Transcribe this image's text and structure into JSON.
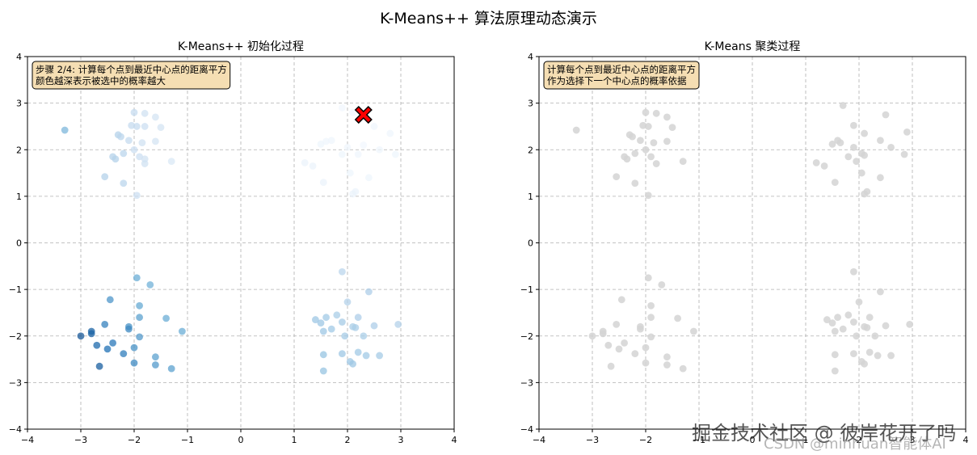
{
  "suptitle": "K-Means++ 算法原理动态演示",
  "watermark": {
    "line1": "掘金技术社区 @ 彼岸花开了吗",
    "line2": "CSDN @minhuan智能体AI"
  },
  "colors": {
    "grid": "#b0b0b0",
    "centroid_fill": "#ff0000",
    "annotation_bg": "#f5deb3",
    "grey_points": "#d3d3d3"
  },
  "chart_data": [
    {
      "type": "scatter",
      "title": "K-Means++ 初始化过程",
      "xlim": [
        -4,
        4
      ],
      "ylim": [
        -4,
        4
      ],
      "xticks": [
        -4,
        -3,
        -2,
        -1,
        0,
        1,
        2,
        3,
        4
      ],
      "yticks": [
        -4,
        -3,
        -2,
        -1,
        0,
        1,
        2,
        3,
        4
      ],
      "grid": true,
      "colormap": "Blues",
      "annotation": [
        "步骤 2/4: 计算每个点到最近中心点的距离平方",
        "颜色越深表示被选中的概率越大"
      ],
      "annotation_position": "top-left",
      "centroid": {
        "x": 2.3,
        "y": 2.75,
        "marker": "X"
      },
      "points": [
        {
          "x": -3.3,
          "y": 2.42,
          "w": 0.45
        },
        {
          "x": -2.0,
          "y": 2.8,
          "w": 0.25
        },
        {
          "x": -1.8,
          "y": 2.78,
          "w": 0.2
        },
        {
          "x": -1.6,
          "y": 2.7,
          "w": 0.18
        },
        {
          "x": -2.05,
          "y": 2.52,
          "w": 0.25
        },
        {
          "x": -1.95,
          "y": 2.5,
          "w": 0.25
        },
        {
          "x": -1.8,
          "y": 2.5,
          "w": 0.22
        },
        {
          "x": -1.5,
          "y": 2.48,
          "w": 0.18
        },
        {
          "x": -2.3,
          "y": 2.32,
          "w": 0.3
        },
        {
          "x": -2.25,
          "y": 2.28,
          "w": 0.28
        },
        {
          "x": -2.1,
          "y": 2.2,
          "w": 0.25
        },
        {
          "x": -1.6,
          "y": 2.18,
          "w": 0.18
        },
        {
          "x": -1.85,
          "y": 2.15,
          "w": 0.2
        },
        {
          "x": -2.0,
          "y": 2.0,
          "w": 0.22
        },
        {
          "x": -2.2,
          "y": 1.92,
          "w": 0.28
        },
        {
          "x": -2.4,
          "y": 1.85,
          "w": 0.3
        },
        {
          "x": -2.35,
          "y": 1.8,
          "w": 0.3
        },
        {
          "x": -1.9,
          "y": 1.85,
          "w": 0.22
        },
        {
          "x": -1.8,
          "y": 1.8,
          "w": 0.2
        },
        {
          "x": -1.8,
          "y": 1.7,
          "w": 0.2
        },
        {
          "x": -1.3,
          "y": 1.75,
          "w": 0.15
        },
        {
          "x": -2.55,
          "y": 1.42,
          "w": 0.3
        },
        {
          "x": -2.2,
          "y": 1.28,
          "w": 0.28
        },
        {
          "x": -1.95,
          "y": 1.02,
          "w": 0.22
        },
        {
          "x": 1.9,
          "y": 2.9,
          "w": 0.03
        },
        {
          "x": 2.1,
          "y": 2.8,
          "w": 0.03
        },
        {
          "x": 2.5,
          "y": 2.5,
          "w": 0.04
        },
        {
          "x": 2.8,
          "y": 2.35,
          "w": 0.04
        },
        {
          "x": 1.7,
          "y": 2.2,
          "w": 0.04
        },
        {
          "x": 1.6,
          "y": 2.18,
          "w": 0.04
        },
        {
          "x": 1.5,
          "y": 2.12,
          "w": 0.05
        },
        {
          "x": 2.0,
          "y": 2.05,
          "w": 0.04
        },
        {
          "x": 2.3,
          "y": 2.1,
          "w": 0.03
        },
        {
          "x": 1.9,
          "y": 1.9,
          "w": 0.05
        },
        {
          "x": 2.2,
          "y": 1.9,
          "w": 0.04
        },
        {
          "x": 2.6,
          "y": 2.0,
          "w": 0.04
        },
        {
          "x": 2.9,
          "y": 1.9,
          "w": 0.05
        },
        {
          "x": 1.2,
          "y": 1.72,
          "w": 0.06
        },
        {
          "x": 1.35,
          "y": 1.65,
          "w": 0.06
        },
        {
          "x": 2.05,
          "y": 1.5,
          "w": 0.05
        },
        {
          "x": 2.4,
          "y": 1.4,
          "w": 0.05
        },
        {
          "x": 1.55,
          "y": 1.3,
          "w": 0.06
        },
        {
          "x": 2.15,
          "y": 1.1,
          "w": 0.06
        },
        {
          "x": 2.1,
          "y": 1.05,
          "w": 0.06
        },
        {
          "x": -1.95,
          "y": -0.75,
          "w": 0.5
        },
        {
          "x": -1.7,
          "y": -0.9,
          "w": 0.48
        },
        {
          "x": -2.45,
          "y": -1.22,
          "w": 0.6
        },
        {
          "x": -1.9,
          "y": -1.35,
          "w": 0.52
        },
        {
          "x": -1.9,
          "y": -1.6,
          "w": 0.55
        },
        {
          "x": -1.4,
          "y": -1.62,
          "w": 0.5
        },
        {
          "x": -2.55,
          "y": -1.75,
          "w": 0.68
        },
        {
          "x": -2.1,
          "y": -1.8,
          "w": 0.62
        },
        {
          "x": -2.1,
          "y": -1.85,
          "w": 0.65
        },
        {
          "x": -1.1,
          "y": -1.9,
          "w": 0.5
        },
        {
          "x": -2.8,
          "y": -1.9,
          "w": 0.8
        },
        {
          "x": -2.8,
          "y": -1.95,
          "w": 0.8
        },
        {
          "x": -3.0,
          "y": -2.0,
          "w": 0.85
        },
        {
          "x": -1.9,
          "y": -2.02,
          "w": 0.58
        },
        {
          "x": -2.4,
          "y": -2.15,
          "w": 0.72
        },
        {
          "x": -2.7,
          "y": -2.2,
          "w": 0.78
        },
        {
          "x": -2.0,
          "y": -2.25,
          "w": 0.62
        },
        {
          "x": -2.5,
          "y": -2.28,
          "w": 0.75
        },
        {
          "x": -2.2,
          "y": -2.38,
          "w": 0.7
        },
        {
          "x": -1.6,
          "y": -2.45,
          "w": 0.55
        },
        {
          "x": -2.0,
          "y": -2.58,
          "w": 0.65
        },
        {
          "x": -1.6,
          "y": -2.62,
          "w": 0.58
        },
        {
          "x": -2.65,
          "y": -2.65,
          "w": 0.82
        },
        {
          "x": -1.3,
          "y": -2.7,
          "w": 0.55
        },
        {
          "x": 1.9,
          "y": -0.62,
          "w": 0.28
        },
        {
          "x": 2.4,
          "y": -1.05,
          "w": 0.32
        },
        {
          "x": 2.0,
          "y": -1.27,
          "w": 0.3
        },
        {
          "x": 1.8,
          "y": -1.55,
          "w": 0.33
        },
        {
          "x": 1.6,
          "y": -1.6,
          "w": 0.35
        },
        {
          "x": 2.2,
          "y": -1.6,
          "w": 0.32
        },
        {
          "x": 1.4,
          "y": -1.65,
          "w": 0.36
        },
        {
          "x": 1.5,
          "y": -1.72,
          "w": 0.36
        },
        {
          "x": 1.9,
          "y": -1.7,
          "w": 0.34
        },
        {
          "x": 2.1,
          "y": -1.8,
          "w": 0.33
        },
        {
          "x": 2.15,
          "y": -1.82,
          "w": 0.33
        },
        {
          "x": 2.5,
          "y": -1.78,
          "w": 0.32
        },
        {
          "x": 2.95,
          "y": -1.75,
          "w": 0.3
        },
        {
          "x": 1.7,
          "y": -1.85,
          "w": 0.35
        },
        {
          "x": 1.55,
          "y": -1.9,
          "w": 0.36
        },
        {
          "x": 1.95,
          "y": -2.0,
          "w": 0.34
        },
        {
          "x": 2.3,
          "y": -2.0,
          "w": 0.33
        },
        {
          "x": 1.55,
          "y": -2.4,
          "w": 0.38
        },
        {
          "x": 1.9,
          "y": -2.38,
          "w": 0.36
        },
        {
          "x": 2.2,
          "y": -2.35,
          "w": 0.35
        },
        {
          "x": 2.35,
          "y": -2.42,
          "w": 0.35
        },
        {
          "x": 2.6,
          "y": -2.42,
          "w": 0.34
        },
        {
          "x": 2.05,
          "y": -2.55,
          "w": 0.36
        },
        {
          "x": 2.1,
          "y": -2.6,
          "w": 0.36
        },
        {
          "x": 1.55,
          "y": -2.75,
          "w": 0.38
        }
      ]
    },
    {
      "type": "scatter",
      "title": "K-Means 聚类过程",
      "xlim": [
        -4,
        4
      ],
      "ylim": [
        -4,
        4
      ],
      "xticks": [
        -4,
        -3,
        -2,
        -1,
        0,
        1,
        2,
        3,
        4
      ],
      "yticks": [
        -4,
        -3,
        -2,
        -1,
        0,
        1,
        2,
        3,
        4
      ],
      "grid": true,
      "color": "#d3d3d3",
      "annotation": [
        "计算每个点到最近中心点的距离平方",
        "作为选择下一个中心点的概率依据"
      ],
      "annotation_position": "top-left",
      "points": [
        {
          "x": -3.3,
          "y": 2.42
        },
        {
          "x": -2.0,
          "y": 2.8
        },
        {
          "x": -1.8,
          "y": 2.78
        },
        {
          "x": -1.6,
          "y": 2.7
        },
        {
          "x": -2.05,
          "y": 2.52
        },
        {
          "x": -1.95,
          "y": 2.5
        },
        {
          "x": -1.5,
          "y": 2.48
        },
        {
          "x": -2.3,
          "y": 2.32
        },
        {
          "x": -2.25,
          "y": 2.28
        },
        {
          "x": -2.1,
          "y": 2.2
        },
        {
          "x": -1.6,
          "y": 2.18
        },
        {
          "x": -1.85,
          "y": 2.15
        },
        {
          "x": -2.0,
          "y": 2.0
        },
        {
          "x": -2.2,
          "y": 1.92
        },
        {
          "x": -2.4,
          "y": 1.85
        },
        {
          "x": -2.35,
          "y": 1.8
        },
        {
          "x": -1.9,
          "y": 1.85
        },
        {
          "x": -1.8,
          "y": 1.7
        },
        {
          "x": -1.3,
          "y": 1.75
        },
        {
          "x": -2.55,
          "y": 1.42
        },
        {
          "x": -2.2,
          "y": 1.28
        },
        {
          "x": -1.95,
          "y": 1.02
        },
        {
          "x": 1.7,
          "y": 2.95
        },
        {
          "x": 2.5,
          "y": 2.75
        },
        {
          "x": 1.9,
          "y": 2.52
        },
        {
          "x": 2.1,
          "y": 2.35
        },
        {
          "x": 2.9,
          "y": 2.38
        },
        {
          "x": 1.6,
          "y": 2.2
        },
        {
          "x": 1.5,
          "y": 2.12
        },
        {
          "x": 1.65,
          "y": 2.15
        },
        {
          "x": 2.4,
          "y": 2.2
        },
        {
          "x": 1.9,
          "y": 2.05
        },
        {
          "x": 2.6,
          "y": 2.05
        },
        {
          "x": 2.05,
          "y": 1.92
        },
        {
          "x": 2.1,
          "y": 1.88
        },
        {
          "x": 1.8,
          "y": 1.85
        },
        {
          "x": 2.85,
          "y": 1.9
        },
        {
          "x": 1.2,
          "y": 1.72
        },
        {
          "x": 1.35,
          "y": 1.65
        },
        {
          "x": 1.95,
          "y": 1.75
        },
        {
          "x": 2.05,
          "y": 1.5
        },
        {
          "x": 2.4,
          "y": 1.4
        },
        {
          "x": 1.55,
          "y": 1.3
        },
        {
          "x": 2.15,
          "y": 1.1
        },
        {
          "x": 2.1,
          "y": 1.05
        },
        {
          "x": -1.95,
          "y": -0.75
        },
        {
          "x": -1.7,
          "y": -0.9
        },
        {
          "x": -2.45,
          "y": -1.22
        },
        {
          "x": -1.9,
          "y": -1.35
        },
        {
          "x": -1.9,
          "y": -1.6
        },
        {
          "x": -1.4,
          "y": -1.62
        },
        {
          "x": -2.55,
          "y": -1.75
        },
        {
          "x": -2.1,
          "y": -1.8
        },
        {
          "x": -2.1,
          "y": -1.85
        },
        {
          "x": -1.1,
          "y": -1.9
        },
        {
          "x": -2.8,
          "y": -1.9
        },
        {
          "x": -2.8,
          "y": -1.95
        },
        {
          "x": -3.0,
          "y": -2.0
        },
        {
          "x": -1.9,
          "y": -2.02
        },
        {
          "x": -2.4,
          "y": -2.15
        },
        {
          "x": -2.7,
          "y": -2.2
        },
        {
          "x": -2.0,
          "y": -2.25
        },
        {
          "x": -2.5,
          "y": -2.28
        },
        {
          "x": -2.2,
          "y": -2.38
        },
        {
          "x": -1.6,
          "y": -2.45
        },
        {
          "x": -2.0,
          "y": -2.58
        },
        {
          "x": -1.6,
          "y": -2.62
        },
        {
          "x": -2.65,
          "y": -2.65
        },
        {
          "x": -1.3,
          "y": -2.7
        },
        {
          "x": 1.9,
          "y": -0.62
        },
        {
          "x": 2.4,
          "y": -1.05
        },
        {
          "x": 2.0,
          "y": -1.27
        },
        {
          "x": 1.8,
          "y": -1.55
        },
        {
          "x": 1.6,
          "y": -1.6
        },
        {
          "x": 2.2,
          "y": -1.6
        },
        {
          "x": 1.4,
          "y": -1.65
        },
        {
          "x": 1.5,
          "y": -1.72
        },
        {
          "x": 1.9,
          "y": -1.7
        },
        {
          "x": 2.1,
          "y": -1.8
        },
        {
          "x": 2.15,
          "y": -1.82
        },
        {
          "x": 2.5,
          "y": -1.78
        },
        {
          "x": 2.95,
          "y": -1.75
        },
        {
          "x": 1.7,
          "y": -1.85
        },
        {
          "x": 1.55,
          "y": -1.9
        },
        {
          "x": 1.95,
          "y": -2.0
        },
        {
          "x": 2.3,
          "y": -2.0
        },
        {
          "x": 1.55,
          "y": -2.4
        },
        {
          "x": 1.9,
          "y": -2.38
        },
        {
          "x": 2.2,
          "y": -2.35
        },
        {
          "x": 2.35,
          "y": -2.42
        },
        {
          "x": 2.6,
          "y": -2.42
        },
        {
          "x": 2.05,
          "y": -2.55
        },
        {
          "x": 2.1,
          "y": -2.6
        },
        {
          "x": 1.55,
          "y": -2.75
        }
      ]
    }
  ]
}
